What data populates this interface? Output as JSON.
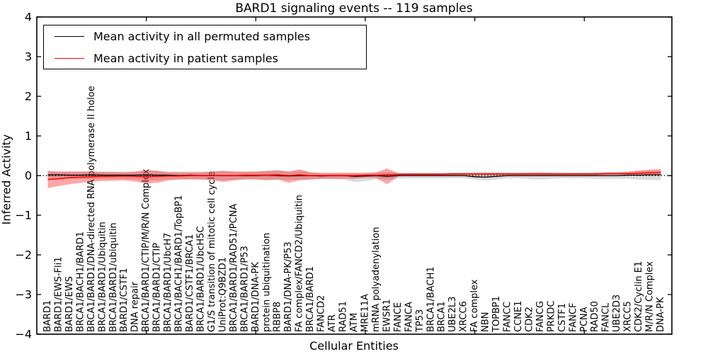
{
  "legend": {
    "items": [
      {
        "label": "Mean activity in all permuted samples",
        "color": "#000000"
      },
      {
        "label": "Mean activity in patient samples",
        "color": "#ff0000"
      }
    ]
  },
  "chart_data": {
    "type": "line",
    "title": "BARD1 signaling events -- 119 samples",
    "xlabel": "Cellular Entities",
    "ylabel": "Inferred Activity",
    "ylim": [
      -4,
      4
    ],
    "ytick_labels": [
      "4",
      "3",
      "2",
      "1",
      "0",
      "−1",
      "−2",
      "−3",
      "−4"
    ],
    "xtick_entity_positions": [
      10,
      20,
      30,
      40,
      50
    ],
    "grid": false,
    "legend_position": "upper left",
    "zero_line": {
      "y": 0,
      "style": "dotted",
      "color": "#000000"
    },
    "colors": {
      "patient_line": "#ff0000",
      "permuted_line": "#000000",
      "patient_band": "#ff0000",
      "patient_band_opacity": 0.35,
      "permuted_band": "#999999",
      "permuted_band_opacity": 0.35
    },
    "categories": [
      "BARD1",
      "BARD1/EWS-Fli1",
      "BARD1/EWS",
      "BRCA1/BACH1/BARD1",
      "BRCA1/BARD1/DNA-directed RNA polymerase II holoe",
      "BRCA1/BARD1/Ubiquitin",
      "BRCA1/BARD1/ubiquitin",
      "BARD1/CSTF1",
      "DNA repair",
      "BRCA1/BARD1/CTIP/M/R/N Complex",
      "BRCA1/BARD1/CTIP",
      "BRCA1/BARD1/UbcH7",
      "BRCA1/BACH1/BARD1/TopBP1",
      "BARD1/CSTF1/BRCA1",
      "BRCA1/BARD1/UbcH5C",
      "G1/S transition of mitotic cell cycle",
      "UniProt:Q9BZD1",
      "BRCA1/BARD1/RAD51/PCNA",
      "BRCA1/BARD1/P53",
      "BARD1/DNA-PK",
      "protein ubiquitination",
      "RBBP8",
      "BARD1/DNA-PK/P53",
      "FA complex/FANCD2/Ubiquitin",
      "BRCA1/BARD1",
      "FANCD2",
      "ATR",
      "RAD51",
      "ATM",
      "MRE11A",
      "mRNA polyadenylation",
      "EWSR1",
      "FANCE",
      "FANCA",
      "TP53",
      "BRCA1/BACH1",
      "BRCA1",
      "UBE2L3",
      "XRCC6",
      "FA complex",
      "NBN",
      "TOPBP1",
      "FANCC",
      "CCNE1",
      "CDK2",
      "FANCG",
      "PRKDC",
      "CSTF1",
      "FANCF",
      "PCNA",
      "RAD50",
      "FANCL",
      "UBE2D3",
      "XRCC5",
      "CDK2/Cyclin E1",
      "M/R/N Complex",
      "DNA-PK"
    ],
    "series": [
      {
        "name": "Mean activity in all permuted samples",
        "color": "#000000",
        "values": [
          0.02,
          0.02,
          0.01,
          0.01,
          0.02,
          0.01,
          0.01,
          0.01,
          0.01,
          0.02,
          0.01,
          0.01,
          0.0,
          0.01,
          0.0,
          0.0,
          0.0,
          0.0,
          0.0,
          0.0,
          0.01,
          0.0,
          -0.01,
          0.0,
          0.0,
          -0.01,
          0.0,
          0.0,
          -0.02,
          -0.01,
          0.0,
          -0.02,
          0.0,
          0.0,
          0.0,
          0.0,
          0.0,
          0.0,
          0.0,
          -0.03,
          -0.04,
          -0.02,
          0.0,
          0.0,
          0.0,
          0.0,
          0.0,
          0.0,
          0.0,
          0.0,
          0.0,
          0.0,
          0.0,
          0.01,
          0.01,
          0.02,
          0.02
        ]
      },
      {
        "name": "Mean activity in patient samples",
        "color": "#ff0000",
        "values": [
          -0.1,
          -0.08,
          -0.05,
          -0.04,
          -0.03,
          -0.02,
          -0.02,
          -0.01,
          -0.02,
          -0.03,
          -0.02,
          -0.01,
          -0.01,
          0.0,
          0.0,
          0.0,
          0.0,
          0.0,
          0.01,
          0.01,
          0.01,
          0.02,
          0.0,
          0.02,
          0.0,
          0.0,
          0.0,
          0.0,
          0.0,
          0.01,
          0.01,
          0.02,
          0.03,
          0.03,
          0.03,
          0.03,
          0.03,
          0.04,
          0.04,
          0.04,
          0.04,
          0.04,
          0.04,
          0.04,
          0.04,
          0.04,
          0.04,
          0.04,
          0.04,
          0.04,
          0.04,
          0.05,
          0.05,
          0.05,
          0.06,
          0.07,
          0.08
        ]
      }
    ],
    "bands": [
      {
        "name": "permuted-range",
        "upper": [
          0.1,
          0.1,
          0.1,
          0.1,
          0.1,
          0.1,
          0.1,
          0.1,
          0.1,
          0.13,
          0.12,
          0.1,
          0.1,
          0.1,
          0.1,
          0.1,
          0.12,
          0.1,
          0.1,
          0.1,
          0.11,
          0.12,
          0.1,
          0.12,
          0.09,
          0.08,
          0.08,
          0.08,
          0.08,
          0.08,
          0.08,
          0.1,
          0.07,
          0.07,
          0.07,
          0.07,
          0.07,
          0.07,
          0.07,
          0.08,
          0.08,
          0.08,
          0.07,
          0.07,
          0.09,
          0.09,
          0.08,
          0.07,
          0.07,
          0.07,
          0.08,
          0.08,
          0.08,
          0.09,
          0.11,
          0.12,
          0.12
        ],
        "lower": [
          -0.08,
          -0.09,
          -0.09,
          -0.09,
          -0.09,
          -0.09,
          -0.09,
          -0.09,
          -0.1,
          -0.13,
          -0.12,
          -0.1,
          -0.09,
          -0.09,
          -0.09,
          -0.1,
          -0.12,
          -0.1,
          -0.09,
          -0.09,
          -0.1,
          -0.1,
          -0.11,
          -0.1,
          -0.09,
          -0.09,
          -0.09,
          -0.1,
          -0.16,
          -0.14,
          -0.09,
          -0.1,
          -0.08,
          -0.07,
          -0.07,
          -0.07,
          -0.07,
          -0.07,
          -0.07,
          -0.1,
          -0.12,
          -0.1,
          -0.07,
          -0.07,
          -0.09,
          -0.1,
          -0.08,
          -0.07,
          -0.07,
          -0.07,
          -0.08,
          -0.08,
          -0.08,
          -0.08,
          -0.1,
          -0.11,
          -0.11
        ]
      },
      {
        "name": "patient-range",
        "upper": [
          0.12,
          0.1,
          0.1,
          0.1,
          0.1,
          0.09,
          0.09,
          0.08,
          0.1,
          0.14,
          0.12,
          0.08,
          0.08,
          0.08,
          0.08,
          0.1,
          0.12,
          0.1,
          0.1,
          0.1,
          0.12,
          0.14,
          0.1,
          0.16,
          0.08,
          0.06,
          0.06,
          0.06,
          0.06,
          0.06,
          0.08,
          0.18,
          0.06,
          0.06,
          0.06,
          0.06,
          0.06,
          0.07,
          0.07,
          0.07,
          0.07,
          0.07,
          0.07,
          0.07,
          0.07,
          0.07,
          0.07,
          0.07,
          0.07,
          0.07,
          0.07,
          0.08,
          0.08,
          0.1,
          0.13,
          0.15,
          0.17
        ],
        "lower": [
          -0.32,
          -0.26,
          -0.22,
          -0.18,
          -0.15,
          -0.14,
          -0.13,
          -0.12,
          -0.15,
          -0.2,
          -0.18,
          -0.12,
          -0.1,
          -0.1,
          -0.1,
          -0.12,
          -0.16,
          -0.12,
          -0.1,
          -0.1,
          -0.12,
          -0.1,
          -0.18,
          -0.12,
          -0.1,
          -0.08,
          -0.08,
          -0.08,
          -0.08,
          -0.06,
          -0.06,
          -0.22,
          -0.02,
          0.0,
          0.0,
          0.0,
          0.0,
          0.01,
          0.01,
          0.01,
          0.01,
          0.01,
          0.01,
          0.01,
          0.01,
          0.01,
          0.01,
          0.01,
          0.01,
          0.01,
          0.01,
          0.02,
          0.02,
          0.02,
          0.02,
          0.02,
          0.02
        ]
      }
    ]
  }
}
